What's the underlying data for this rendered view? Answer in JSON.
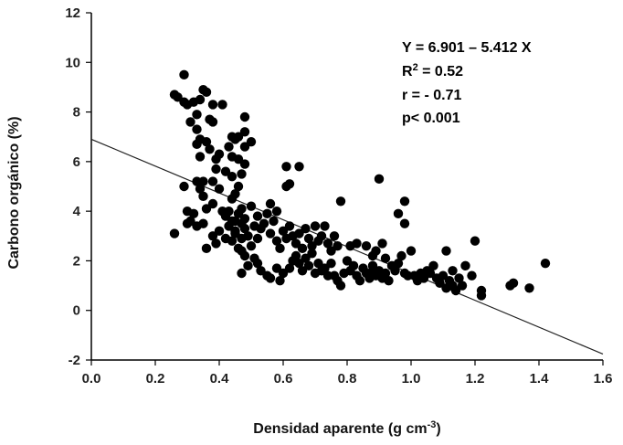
{
  "chart_data": {
    "type": "scatter",
    "title": "",
    "xlabel": "Densidad aparente (g cm",
    "xlabel_sup": "-3",
    "xlabel_end": ")",
    "ylabel": "Carbono orgánico (%)",
    "xlim": [
      0.0,
      1.6
    ],
    "ylim": [
      -2,
      12
    ],
    "xticks": [
      "0.0",
      "0.2",
      "0.4",
      "0.6",
      "0.8",
      "1.0",
      "1.2",
      "1.4",
      "1.6"
    ],
    "yticks": [
      "-2",
      "0",
      "2",
      "4",
      "6",
      "8",
      "10",
      "12"
    ],
    "annotation": {
      "line1": "Y   = 6.901 – 5.412 X",
      "line2_a": "R",
      "line2_sup": "2",
      "line2_b": " = 0.52",
      "line3": "r     = - 0.71",
      "line4": "p< 0.001"
    },
    "regression": {
      "intercept": 6.901,
      "slope": -5.412
    },
    "points": [
      [
        0.26,
        8.7
      ],
      [
        0.27,
        8.6
      ],
      [
        0.29,
        9.5
      ],
      [
        0.29,
        8.4
      ],
      [
        0.3,
        8.3
      ],
      [
        0.32,
        8.4
      ],
      [
        0.33,
        7.9
      ],
      [
        0.34,
        8.5
      ],
      [
        0.35,
        8.9
      ],
      [
        0.36,
        8.8
      ],
      [
        0.31,
        7.6
      ],
      [
        0.33,
        7.3
      ],
      [
        0.33,
        6.7
      ],
      [
        0.34,
        6.9
      ],
      [
        0.37,
        7.7
      ],
      [
        0.38,
        7.6
      ],
      [
        0.38,
        8.3
      ],
      [
        0.41,
        8.3
      ],
      [
        0.44,
        7.0
      ],
      [
        0.45,
        6.9
      ],
      [
        0.43,
        6.6
      ],
      [
        0.44,
        6.2
      ],
      [
        0.46,
        6.1
      ],
      [
        0.46,
        7.0
      ],
      [
        0.48,
        7.8
      ],
      [
        0.48,
        7.2
      ],
      [
        0.48,
        6.6
      ],
      [
        0.5,
        6.8
      ],
      [
        0.48,
        5.9
      ],
      [
        0.47,
        5.5
      ],
      [
        0.44,
        5.4
      ],
      [
        0.42,
        5.6
      ],
      [
        0.39,
        5.7
      ],
      [
        0.38,
        5.2
      ],
      [
        0.35,
        5.2
      ],
      [
        0.33,
        5.2
      ],
      [
        0.34,
        4.9
      ],
      [
        0.35,
        4.6
      ],
      [
        0.29,
        5.0
      ],
      [
        0.36,
        4.1
      ],
      [
        0.38,
        4.3
      ],
      [
        0.4,
        4.9
      ],
      [
        0.41,
        4.0
      ],
      [
        0.42,
        3.8
      ],
      [
        0.44,
        3.6
      ],
      [
        0.45,
        3.2
      ],
      [
        0.46,
        3.9
      ],
      [
        0.47,
        3.5
      ],
      [
        0.48,
        3.3
      ],
      [
        0.49,
        3.0
      ],
      [
        0.3,
        4.0
      ],
      [
        0.31,
        3.6
      ],
      [
        0.32,
        3.9
      ],
      [
        0.33,
        3.4
      ],
      [
        0.35,
        3.5
      ],
      [
        0.3,
        3.5
      ],
      [
        0.26,
        3.1
      ],
      [
        0.36,
        2.5
      ],
      [
        0.39,
        2.7
      ],
      [
        0.42,
        2.9
      ],
      [
        0.44,
        2.8
      ],
      [
        0.46,
        2.5
      ],
      [
        0.47,
        2.9
      ],
      [
        0.5,
        2.6
      ],
      [
        0.52,
        2.9
      ],
      [
        0.53,
        3.3
      ],
      [
        0.54,
        3.5
      ],
      [
        0.55,
        3.9
      ],
      [
        0.56,
        3.1
      ],
      [
        0.57,
        3.6
      ],
      [
        0.58,
        2.8
      ],
      [
        0.59,
        2.5
      ],
      [
        0.6,
        3.2
      ],
      [
        0.61,
        2.9
      ],
      [
        0.62,
        3.4
      ],
      [
        0.63,
        3.0
      ],
      [
        0.64,
        2.7
      ],
      [
        0.65,
        3.1
      ],
      [
        0.66,
        2.5
      ],
      [
        0.67,
        3.3
      ],
      [
        0.68,
        2.9
      ],
      [
        0.69,
        2.6
      ],
      [
        0.7,
        3.4
      ],
      [
        0.71,
        2.8
      ],
      [
        0.72,
        3.0
      ],
      [
        0.73,
        3.4
      ],
      [
        0.74,
        2.7
      ],
      [
        0.75,
        2.4
      ],
      [
        0.76,
        3.0
      ],
      [
        0.77,
        2.6
      ],
      [
        0.56,
        4.3
      ],
      [
        0.58,
        4.0
      ],
      [
        0.5,
        4.2
      ],
      [
        0.52,
        3.8
      ],
      [
        0.47,
        4.1
      ],
      [
        0.45,
        3.6
      ],
      [
        0.48,
        3.7
      ],
      [
        0.51,
        3.4
      ],
      [
        0.61,
        5.8
      ],
      [
        0.62,
        5.1
      ],
      [
        0.61,
        5.0
      ],
      [
        0.65,
        5.8
      ],
      [
        0.47,
        1.5
      ],
      [
        0.49,
        1.8
      ],
      [
        0.51,
        2.1
      ],
      [
        0.52,
        1.9
      ],
      [
        0.53,
        1.6
      ],
      [
        0.55,
        1.4
      ],
      [
        0.56,
        1.3
      ],
      [
        0.58,
        1.7
      ],
      [
        0.59,
        1.2
      ],
      [
        0.6,
        1.5
      ],
      [
        0.62,
        1.7
      ],
      [
        0.63,
        2.0
      ],
      [
        0.64,
        2.2
      ],
      [
        0.65,
        1.9
      ],
      [
        0.66,
        1.6
      ],
      [
        0.67,
        2.1
      ],
      [
        0.68,
        1.8
      ],
      [
        0.69,
        2.3
      ],
      [
        0.7,
        1.5
      ],
      [
        0.71,
        1.9
      ],
      [
        0.72,
        1.6
      ],
      [
        0.73,
        1.7
      ],
      [
        0.74,
        1.4
      ],
      [
        0.75,
        1.9
      ],
      [
        0.76,
        1.4
      ],
      [
        0.77,
        1.2
      ],
      [
        0.78,
        1.0
      ],
      [
        0.79,
        1.5
      ],
      [
        0.8,
        2.0
      ],
      [
        0.81,
        1.6
      ],
      [
        0.82,
        1.8
      ],
      [
        0.83,
        1.4
      ],
      [
        0.84,
        1.2
      ],
      [
        0.85,
        1.7
      ],
      [
        0.86,
        1.5
      ],
      [
        0.87,
        1.3
      ],
      [
        0.88,
        1.8
      ],
      [
        0.89,
        1.4
      ],
      [
        0.9,
        1.6
      ],
      [
        0.91,
        1.3
      ],
      [
        0.92,
        1.5
      ],
      [
        0.93,
        1.2
      ],
      [
        0.94,
        1.8
      ],
      [
        0.95,
        1.6
      ],
      [
        0.96,
        1.9
      ],
      [
        0.97,
        2.2
      ],
      [
        0.98,
        1.5
      ],
      [
        0.99,
        1.4
      ],
      [
        0.78,
        4.4
      ],
      [
        0.81,
        2.6
      ],
      [
        0.83,
        2.7
      ],
      [
        0.86,
        2.6
      ],
      [
        0.88,
        2.2
      ],
      [
        0.89,
        2.4
      ],
      [
        0.9,
        5.3
      ],
      [
        0.91,
        2.7
      ],
      [
        0.92,
        2.1
      ],
      [
        0.88,
        1.6
      ],
      [
        0.96,
        3.9
      ],
      [
        0.98,
        3.5
      ],
      [
        0.98,
        4.4
      ],
      [
        1.0,
        2.4
      ],
      [
        1.01,
        1.4
      ],
      [
        1.02,
        1.2
      ],
      [
        1.03,
        1.5
      ],
      [
        1.04,
        1.3
      ],
      [
        1.05,
        1.6
      ],
      [
        1.06,
        1.5
      ],
      [
        1.07,
        1.8
      ],
      [
        1.08,
        1.3
      ],
      [
        1.09,
        1.1
      ],
      [
        1.1,
        1.4
      ],
      [
        1.11,
        0.9
      ],
      [
        1.12,
        1.2
      ],
      [
        1.13,
        1.0
      ],
      [
        1.14,
        0.8
      ],
      [
        1.15,
        1.3
      ],
      [
        1.16,
        1.0
      ],
      [
        1.11,
        2.4
      ],
      [
        1.13,
        1.6
      ],
      [
        1.17,
        1.8
      ],
      [
        1.19,
        1.4
      ],
      [
        1.2,
        2.8
      ],
      [
        1.22,
        0.8
      ],
      [
        1.22,
        0.6
      ],
      [
        1.31,
        1.0
      ],
      [
        1.32,
        1.1
      ],
      [
        1.37,
        0.9
      ],
      [
        1.42,
        1.9
      ],
      [
        0.47,
        2.4
      ],
      [
        0.48,
        2.2
      ],
      [
        0.45,
        3.1
      ],
      [
        0.43,
        3.4
      ],
      [
        0.4,
        3.2
      ],
      [
        0.38,
        3.0
      ],
      [
        0.43,
        4.0
      ],
      [
        0.44,
        4.5
      ],
      [
        0.45,
        4.7
      ],
      [
        0.46,
        5.0
      ],
      [
        0.4,
        6.3
      ],
      [
        0.39,
        6.1
      ],
      [
        0.37,
        6.5
      ],
      [
        0.36,
        6.8
      ],
      [
        0.34,
        6.2
      ]
    ]
  }
}
